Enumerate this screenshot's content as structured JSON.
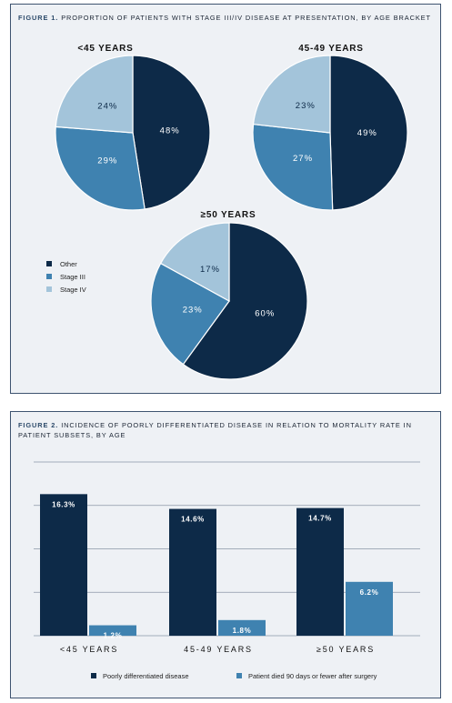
{
  "figure1": {
    "title_num": "FIGURE 1.",
    "title_text": "PROPORTION OF PATIENTS WITH STAGE III/IV DISEASE AT PRESENTATION, BY AGE BRACKET"
  },
  "figure2": {
    "title_num": "FIGURE 2.",
    "title_text": "INCIDENCE OF POORLY DIFFERENTIATED DISEASE IN RELATION TO MORTALITY RATE IN PATIENT SUBSETS, BY AGE"
  },
  "colors": {
    "other": "#0d2a48",
    "stage3": "#3f82b0",
    "stage4": "#a3c4da"
  },
  "chart_data": [
    {
      "type": "pie",
      "title": "",
      "legend": [
        "Other",
        "Stage III",
        "Stage IV"
      ],
      "pies": [
        {
          "title": "<45 YEARS",
          "values": [
            48,
            29,
            24
          ],
          "labels": [
            "48%",
            "29%",
            "24%"
          ]
        },
        {
          "title": "45-49 YEARS",
          "values": [
            49,
            27,
            23
          ],
          "labels": [
            "49%",
            "27%",
            "23%"
          ]
        },
        {
          "title": "≥50 YEARS",
          "values": [
            60,
            23,
            17
          ],
          "labels": [
            "60%",
            "23%",
            "17%"
          ]
        }
      ]
    },
    {
      "type": "bar",
      "title": "",
      "categories": [
        "<45 YEARS",
        "45-49 YEARS",
        "≥50 YEARS"
      ],
      "series": [
        {
          "name": "Poorly differentiated disease",
          "values": [
            16.3,
            14.6,
            14.7
          ],
          "labels": [
            "16.3%",
            "14.6%",
            "14.7%"
          ]
        },
        {
          "name": "Patient died 90 days or fewer after surgery",
          "values": [
            1.2,
            1.8,
            6.2
          ],
          "labels": [
            "1.2%",
            "1.8%",
            "6.2%"
          ]
        }
      ],
      "ylim": [
        0,
        20
      ],
      "grid": true,
      "legend_position": "bottom"
    }
  ]
}
